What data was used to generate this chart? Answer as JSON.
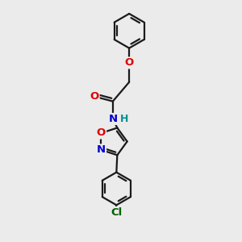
{
  "bg_color": "#ebebeb",
  "bond_color": "#1a1a1a",
  "bond_width": 1.6,
  "atom_colors": {
    "O": "#e00000",
    "N": "#0000cc",
    "H": "#009090",
    "Cl": "#006000",
    "C": "#1a1a1a"
  },
  "font_size": 9.5,
  "figsize": [
    3.0,
    3.0
  ],
  "dpi": 100,
  "xlim": [
    -1.2,
    1.4
  ],
  "ylim": [
    -3.8,
    2.0
  ]
}
